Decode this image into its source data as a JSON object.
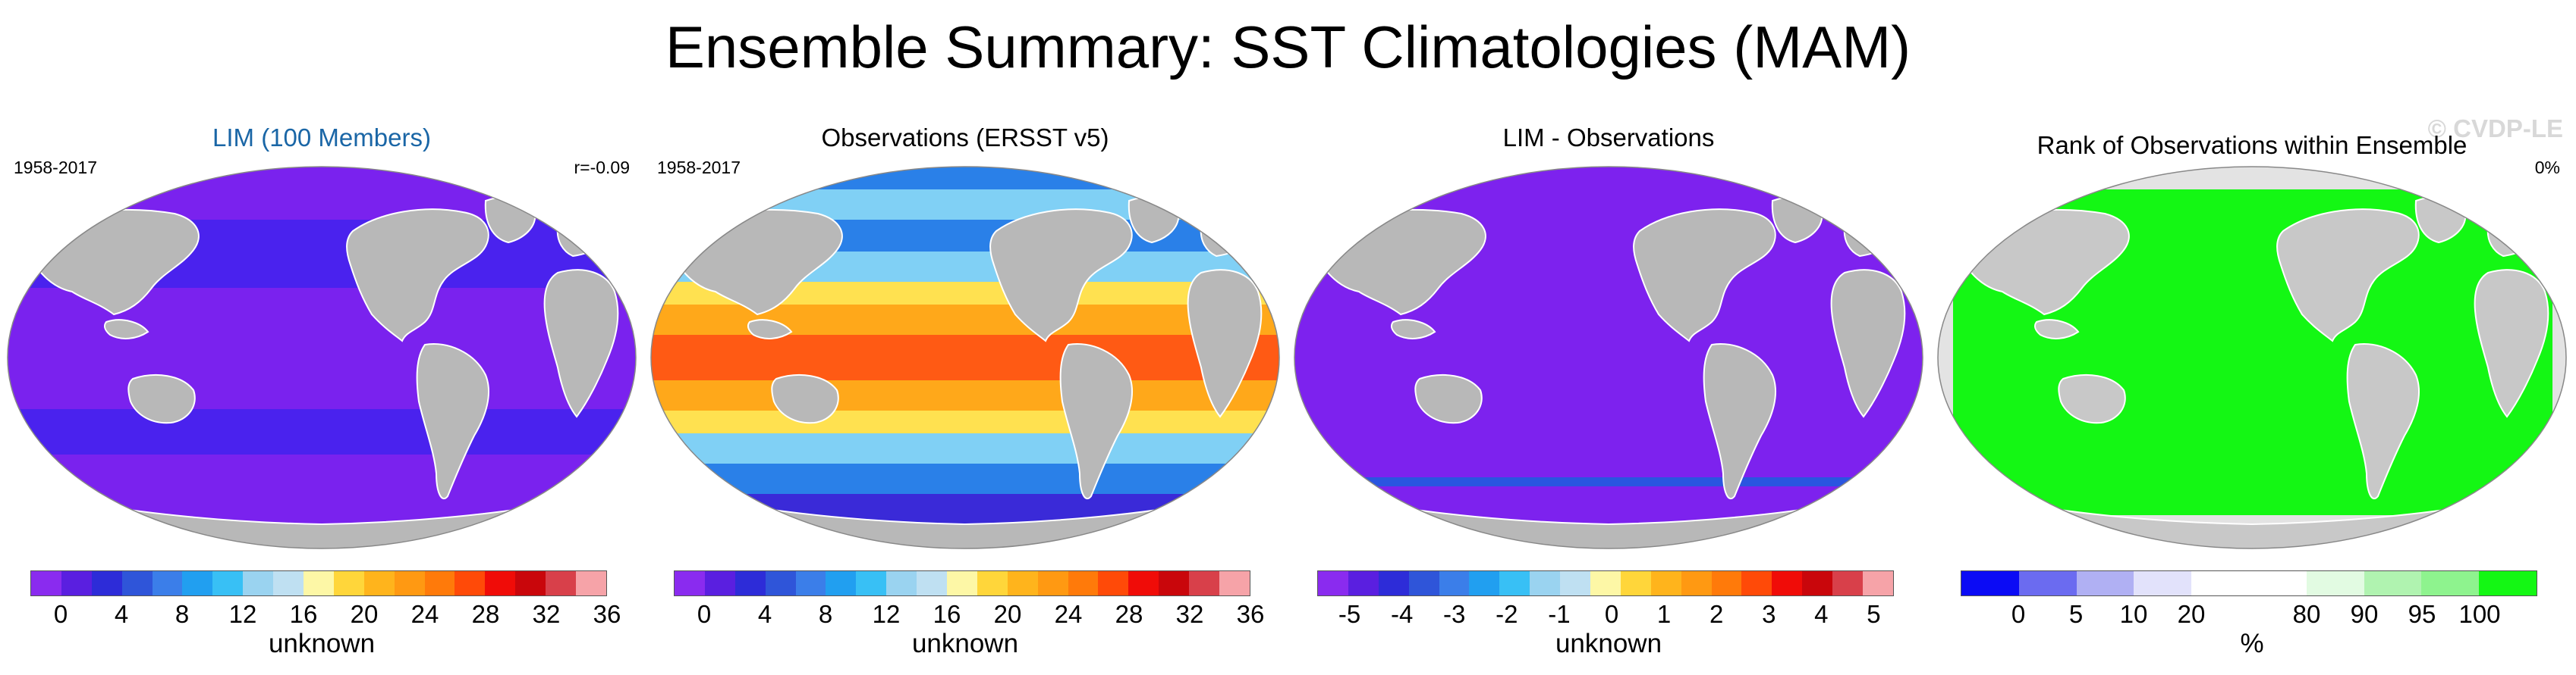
{
  "title": "Ensemble Summary: SST Climatologies (MAM)",
  "watermark": "© CVDP-LE",
  "panels": [
    {
      "title": "LIM (100 Members)",
      "left_label": "1958-2017",
      "right_label": "r=-0.09",
      "ocean": [
        "#7a22ee",
        "#4a22ee"
      ],
      "colorbar": {
        "colors": [
          "#8a2bef",
          "#5a1fe0",
          "#2d2cd8",
          "#2f55d9",
          "#3b7ee9",
          "#219ff0",
          "#38c0f5",
          "#9ad3f0",
          "#bfe0f2",
          "#fdf7a6",
          "#ffd63a",
          "#ffb41c",
          "#ff9912",
          "#ff7a0a",
          "#ff4a08",
          "#f00c08",
          "#c9060b",
          "#d8404a",
          "#f6a3a8"
        ],
        "tick_labels": [
          "0",
          "4",
          "8",
          "12",
          "16",
          "20",
          "24",
          "28",
          "32",
          "36"
        ],
        "label": "unknown"
      }
    },
    {
      "title": "Observations (ERSST v5)",
      "left_label": "1958-2017",
      "right_label": "",
      "ocean": [
        "#ff5a14",
        "#ffa81a",
        "#ffe150",
        "#80d0f5",
        "#2a80e8",
        "#3a2ad8"
      ],
      "colorbar": {
        "colors": [
          "#8a2bef",
          "#5a1fe0",
          "#2d2cd8",
          "#2f55d9",
          "#3b7ee9",
          "#219ff0",
          "#38c0f5",
          "#9ad3f0",
          "#bfe0f2",
          "#fdf7a6",
          "#ffd63a",
          "#ffb41c",
          "#ff9912",
          "#ff7a0a",
          "#ff4a08",
          "#f00c08",
          "#c9060b",
          "#d8404a",
          "#f6a3a8"
        ],
        "tick_labels": [
          "0",
          "4",
          "8",
          "12",
          "16",
          "20",
          "24",
          "28",
          "32",
          "36"
        ],
        "label": "unknown"
      }
    },
    {
      "title": "LIM - Observations",
      "left_label": "",
      "right_label": "",
      "ocean": [
        "#7d22ee",
        "#7d22ee"
      ],
      "colorbar": {
        "colors": [
          "#8a2bef",
          "#5a1fe0",
          "#2d2cd8",
          "#2f55d9",
          "#3b7ee9",
          "#219ff0",
          "#38c0f5",
          "#9ad3f0",
          "#bfe0f2",
          "#fdf7a6",
          "#ffd63a",
          "#ffb41c",
          "#ff9912",
          "#ff7a0a",
          "#ff4a08",
          "#f00c08",
          "#c9060b",
          "#d8404a",
          "#f6a3a8"
        ],
        "tick_labels": [
          "-5",
          "-4",
          "-3",
          "-2",
          "-1",
          "0",
          "1",
          "2",
          "3",
          "4",
          "5"
        ],
        "label": "unknown"
      }
    },
    {
      "title": "Rank of Observations within Ensemble",
      "left_label": "",
      "right_label": "0%",
      "ocean": [
        "#14f714",
        "#14f714"
      ],
      "colorbar": {
        "colors": [
          "#0b0bf5",
          "#6b6bf0",
          "#b0b0f3",
          "#e2e2fb",
          "#ffffff",
          "#ffffff",
          "#e2fbe2",
          "#b0f3b0",
          "#8ef38e",
          "#14f714"
        ],
        "tick_labels": [
          "0",
          "5",
          "10",
          "20",
          "80",
          "90",
          "95",
          "100"
        ],
        "label": "%"
      }
    }
  ]
}
